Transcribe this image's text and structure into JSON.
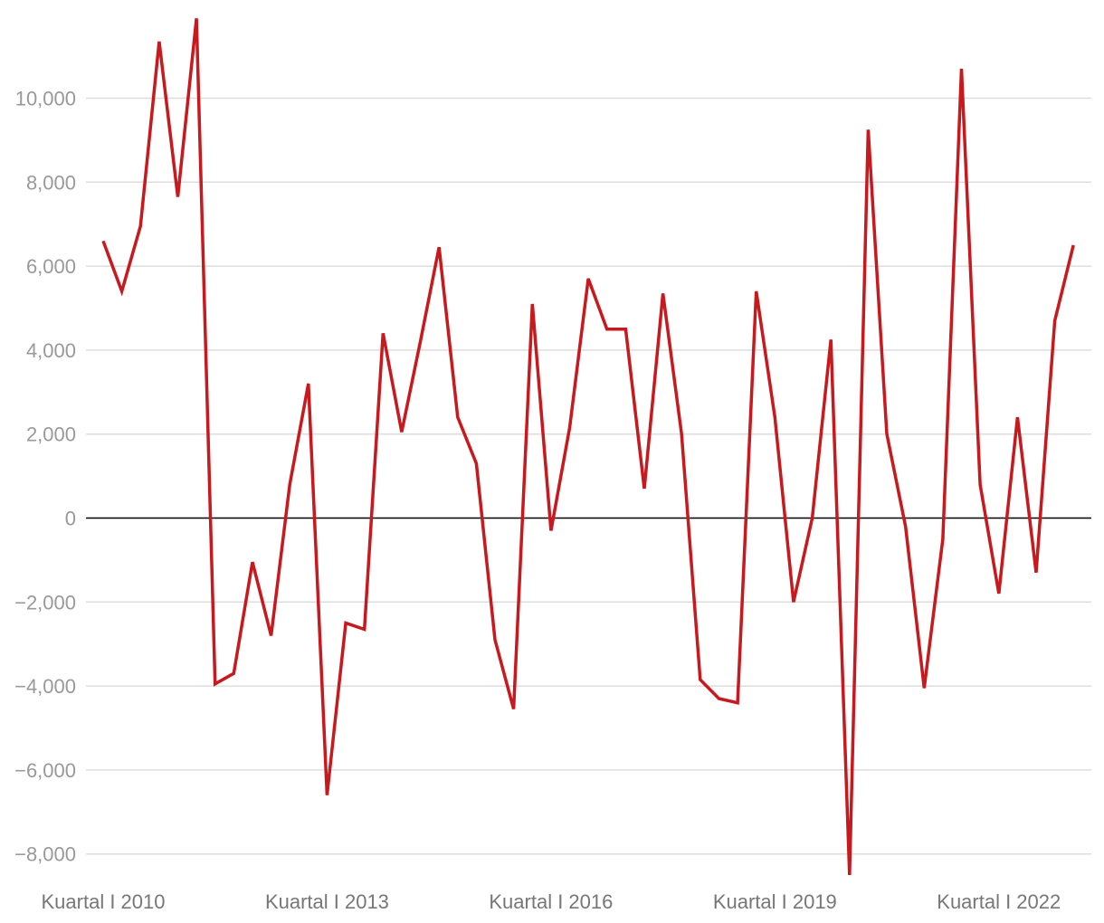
{
  "chart_data": {
    "type": "line",
    "title": "",
    "xlabel": "",
    "ylabel": "",
    "ylim": [
      -8500,
      12000
    ],
    "yticks": [
      -8000,
      -6000,
      -4000,
      -2000,
      0,
      2000,
      4000,
      6000,
      8000,
      10000
    ],
    "ytick_labels": [
      "−8,000",
      "−6,000",
      "−4,000",
      "−2,000",
      "0",
      "2,000",
      "4,000",
      "6,000",
      "8,000",
      "10,000"
    ],
    "grid": true,
    "xtick_labels": [
      {
        "index": 0,
        "label": "Kuartal I 2010"
      },
      {
        "index": 12,
        "label": "Kuartal I 2013"
      },
      {
        "index": 24,
        "label": "Kuartal I 2016"
      },
      {
        "index": 36,
        "label": "Kuartal I 2019"
      },
      {
        "index": 48,
        "label": "Kuartal I 2022"
      }
    ],
    "series": [
      {
        "color": "#c8191e",
        "values": [
          6600,
          5400,
          6950,
          11350,
          7650,
          11900,
          -3950,
          -3700,
          -1050,
          -2800,
          800,
          3200,
          -6600,
          -2500,
          -2650,
          4400,
          2050,
          4200,
          6450,
          2400,
          1300,
          -2900,
          -4550,
          5100,
          -300,
          2150,
          5700,
          4500,
          4500,
          700,
          5350,
          2000,
          -3850,
          -4300,
          -4400,
          5400,
          2400,
          -2000,
          0,
          4250,
          -8500,
          9250,
          2000,
          -200,
          -4050,
          -500,
          10700,
          800,
          -1800,
          2400,
          -1300,
          4700,
          6500
        ]
      }
    ]
  }
}
